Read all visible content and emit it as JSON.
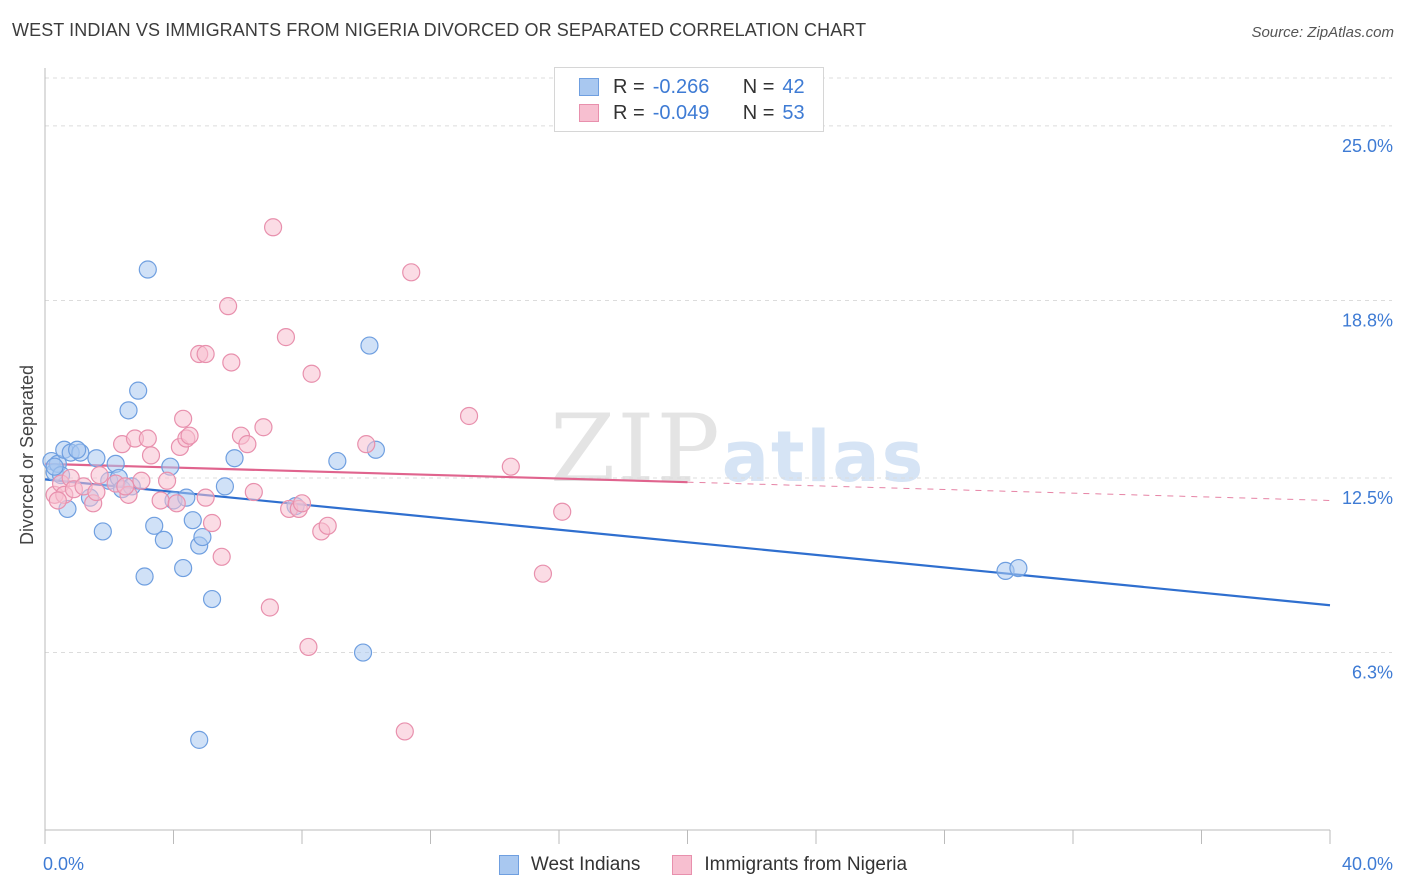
{
  "header": {
    "title": "WEST INDIAN VS IMMIGRANTS FROM NIGERIA DIVORCED OR SEPARATED CORRELATION CHART",
    "source": "Source: ZipAtlas.com"
  },
  "watermark": {
    "zip": "ZIP",
    "atlas": "atlas"
  },
  "legend": {
    "rows": [
      {
        "r_label": "R =",
        "r_value": "-0.266",
        "n_label": "N =",
        "n_value": "42",
        "color": "#a9c8f0",
        "border": "#6f9fe0"
      },
      {
        "r_label": "R =",
        "r_value": "-0.049",
        "n_label": "N =",
        "n_value": "53",
        "color": "#f7bfd0",
        "border": "#e890ad"
      }
    ]
  },
  "bottom_legend": {
    "a": "West Indians",
    "b": "Immigrants from Nigeria"
  },
  "chart_data": {
    "type": "scatter",
    "title": "WEST INDIAN VS IMMIGRANTS FROM NIGERIA DIVORCED OR SEPARATED CORRELATION CHART",
    "xlabel": "",
    "ylabel": "Divorced or Separated",
    "xlim": [
      0,
      40
    ],
    "ylim": [
      0,
      26.7
    ],
    "x_tick_labels": [
      "0.0%",
      "40.0%"
    ],
    "y_ticks": [
      6.3,
      12.5,
      18.8,
      25.0
    ],
    "y_tick_labels": [
      "6.3%",
      "12.5%",
      "18.8%",
      "25.0%"
    ],
    "grid": true,
    "series": [
      {
        "name": "West Indians",
        "color": "#6f9fe0",
        "fill": "#a9c8f0",
        "points": [
          [
            0.2,
            13.1
          ],
          [
            0.3,
            12.7
          ],
          [
            0.4,
            13.0
          ],
          [
            0.5,
            12.6
          ],
          [
            0.6,
            13.5
          ],
          [
            0.7,
            11.4
          ],
          [
            0.8,
            13.4
          ],
          [
            1.1,
            13.4
          ],
          [
            1.4,
            11.8
          ],
          [
            1.6,
            13.2
          ],
          [
            1.8,
            10.6
          ],
          [
            2.0,
            12.4
          ],
          [
            2.2,
            13.0
          ],
          [
            2.3,
            12.5
          ],
          [
            2.4,
            12.1
          ],
          [
            2.7,
            12.2
          ],
          [
            2.9,
            15.6
          ],
          [
            2.6,
            14.9
          ],
          [
            3.1,
            9.0
          ],
          [
            3.2,
            19.9
          ],
          [
            3.4,
            10.8
          ],
          [
            3.7,
            10.3
          ],
          [
            3.9,
            12.9
          ],
          [
            4.0,
            11.7
          ],
          [
            4.3,
            9.3
          ],
          [
            4.4,
            11.8
          ],
          [
            4.6,
            11.0
          ],
          [
            4.8,
            10.1
          ],
          [
            4.9,
            10.4
          ],
          [
            5.2,
            8.2
          ],
          [
            5.6,
            12.2
          ],
          [
            5.9,
            13.2
          ],
          [
            7.8,
            11.5
          ],
          [
            9.1,
            13.1
          ],
          [
            9.9,
            6.3
          ],
          [
            10.1,
            17.2
          ],
          [
            10.3,
            13.5
          ],
          [
            4.8,
            3.2
          ],
          [
            29.9,
            9.2
          ],
          [
            30.3,
            9.3
          ],
          [
            0.3,
            12.9
          ],
          [
            1.0,
            13.5
          ]
        ],
        "trend": {
          "x": [
            0,
            40
          ],
          "y": [
            12.45,
            7.98
          ],
          "dashed_from": null
        }
      },
      {
        "name": "Immigrants from Nigeria",
        "color": "#e890ad",
        "fill": "#f7bfd0",
        "points": [
          [
            0.3,
            11.9
          ],
          [
            0.5,
            12.3
          ],
          [
            0.6,
            11.9
          ],
          [
            0.8,
            12.5
          ],
          [
            0.9,
            12.1
          ],
          [
            1.2,
            12.2
          ],
          [
            1.5,
            11.6
          ],
          [
            1.7,
            12.6
          ],
          [
            2.2,
            12.3
          ],
          [
            2.4,
            13.7
          ],
          [
            2.6,
            11.9
          ],
          [
            2.8,
            13.9
          ],
          [
            3.0,
            12.4
          ],
          [
            3.2,
            13.9
          ],
          [
            3.3,
            13.3
          ],
          [
            3.6,
            11.7
          ],
          [
            3.8,
            12.4
          ],
          [
            4.1,
            11.6
          ],
          [
            4.2,
            13.6
          ],
          [
            4.3,
            14.6
          ],
          [
            4.4,
            13.9
          ],
          [
            4.5,
            14.0
          ],
          [
            4.8,
            16.9
          ],
          [
            5.0,
            16.9
          ],
          [
            5.0,
            11.8
          ],
          [
            5.2,
            10.9
          ],
          [
            5.5,
            9.7
          ],
          [
            5.7,
            18.6
          ],
          [
            5.8,
            16.6
          ],
          [
            6.1,
            14.0
          ],
          [
            6.3,
            13.7
          ],
          [
            6.5,
            12.0
          ],
          [
            6.8,
            14.3
          ],
          [
            7.0,
            7.9
          ],
          [
            7.1,
            21.4
          ],
          [
            7.5,
            17.5
          ],
          [
            7.6,
            11.4
          ],
          [
            7.9,
            11.4
          ],
          [
            8.0,
            11.6
          ],
          [
            8.2,
            6.5
          ],
          [
            8.3,
            16.2
          ],
          [
            8.6,
            10.6
          ],
          [
            8.8,
            10.8
          ],
          [
            10.0,
            13.7
          ],
          [
            11.2,
            3.5
          ],
          [
            11.4,
            19.8
          ],
          [
            13.2,
            14.7
          ],
          [
            14.5,
            12.9
          ],
          [
            15.5,
            9.1
          ],
          [
            16.1,
            11.3
          ],
          [
            0.4,
            11.7
          ],
          [
            1.6,
            12.0
          ],
          [
            2.5,
            12.2
          ]
        ],
        "trend": {
          "x": [
            0,
            40
          ],
          "y": [
            13.0,
            11.7
          ],
          "dashed_from": 20
        }
      }
    ]
  }
}
